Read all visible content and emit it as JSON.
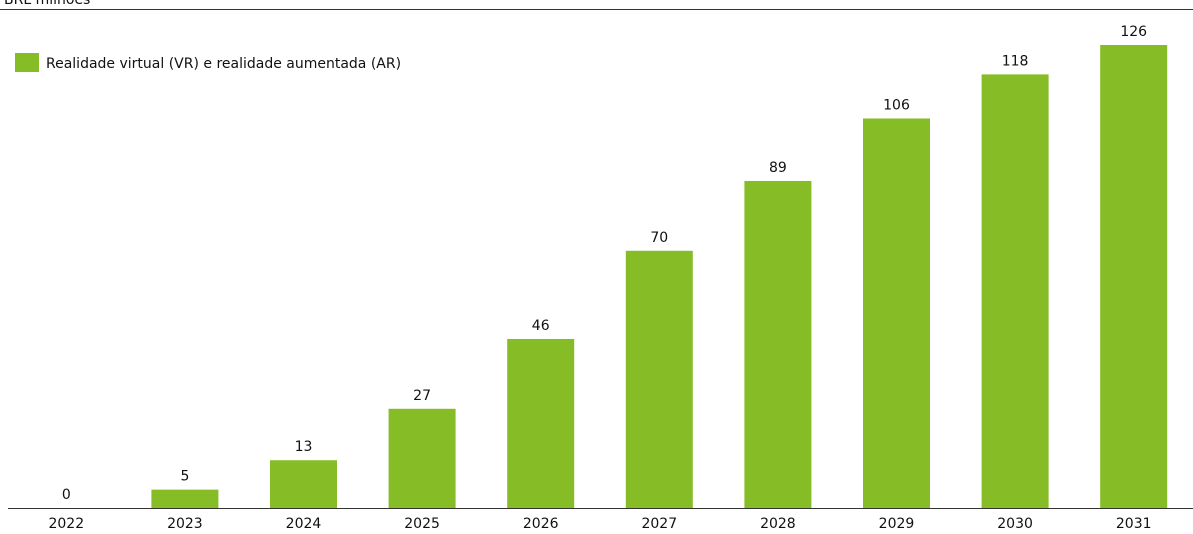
{
  "chart_data": {
    "type": "bar",
    "subtitle": "BRL milhões",
    "categories": [
      "2022",
      "2023",
      "2024",
      "2025",
      "2026",
      "2027",
      "2028",
      "2029",
      "2030",
      "2031"
    ],
    "series": [
      {
        "name": "Realidade virtual (VR) e realidade aumentada (AR)",
        "color": "#86bc25",
        "values": [
          0,
          5,
          13,
          27,
          46,
          70,
          89,
          106,
          118,
          126
        ]
      }
    ]
  }
}
